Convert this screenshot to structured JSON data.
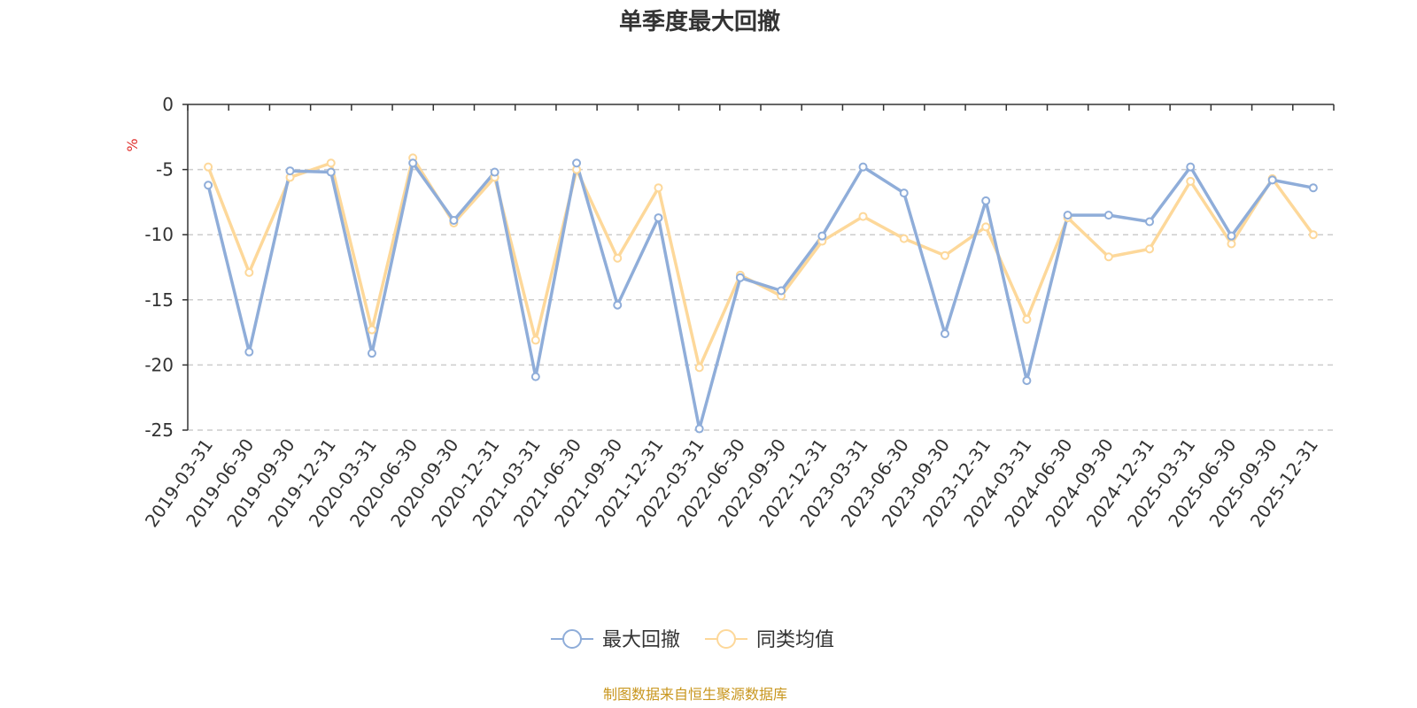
{
  "chart_data": {
    "type": "line",
    "title": "单季度最大回撤",
    "unit": "%",
    "source": "制图数据来自恒生聚源数据库",
    "ylim": [
      -25,
      0
    ],
    "yticks": [
      0,
      -5,
      -10,
      -15,
      -20,
      -25
    ],
    "grid": "horizontal dashed",
    "legend_position": "bottom-center",
    "categories": [
      "2019-03-31",
      "2019-06-30",
      "2019-09-30",
      "2019-12-31",
      "2020-03-31",
      "2020-06-30",
      "2020-09-30",
      "2020-12-31",
      "2021-03-31",
      "2021-06-30",
      "2021-09-30",
      "2021-12-31",
      "2022-03-31",
      "2022-06-30",
      "2022-09-30",
      "2022-12-31",
      "2023-03-31",
      "2023-06-30",
      "2023-09-30",
      "2023-12-31",
      "2024-03-31",
      "2024-06-30",
      "2024-09-30",
      "2024-12-31",
      "2025-03-31",
      "2025-06-30",
      "2025-09-30",
      "2025-12-31"
    ],
    "series": [
      {
        "name": "最大回撤",
        "color": "#8fadd9",
        "values": [
          -6.2,
          -19.0,
          -5.1,
          -5.2,
          -19.1,
          -4.5,
          -8.9,
          -5.2,
          -20.9,
          -4.5,
          -15.4,
          -8.7,
          -24.9,
          -13.3,
          -14.3,
          -10.1,
          -4.8,
          -6.8,
          -17.6,
          -7.4,
          -21.2,
          -8.5,
          -8.5,
          -9.0,
          -4.8,
          -10.1,
          -5.8,
          -6.4
        ]
      },
      {
        "name": "同类均值",
        "color": "#fdd89a",
        "values": [
          -4.8,
          -12.9,
          -5.6,
          -4.5,
          -17.3,
          -4.1,
          -9.1,
          -5.6,
          -18.1,
          -5.0,
          -11.8,
          -6.4,
          -20.2,
          -13.1,
          -14.7,
          -10.5,
          -8.6,
          -10.3,
          -11.6,
          -9.4,
          -16.5,
          -8.7,
          -11.7,
          -11.1,
          -5.9,
          -10.7,
          -5.7,
          -10.0
        ]
      }
    ]
  }
}
